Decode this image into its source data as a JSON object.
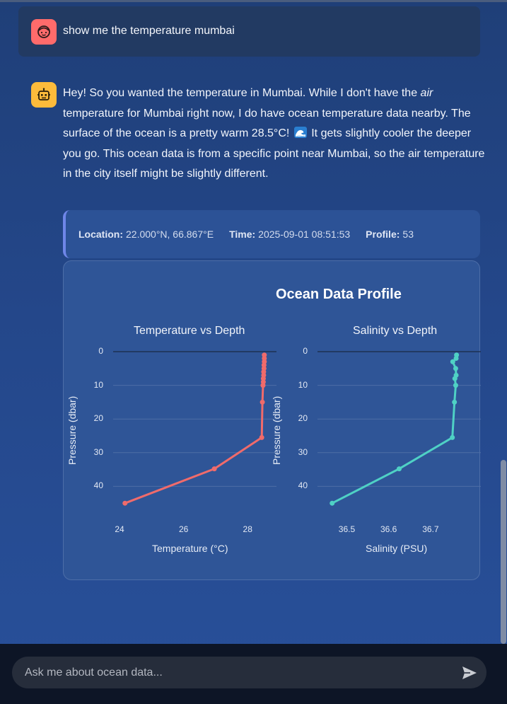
{
  "conversation": {
    "user_message": "show me the temperature mumbai",
    "bot_message": {
      "part1": "Hey! So you wanted the temperature in Mumbai. While I don't have the ",
      "emphasis": "air",
      "part2": " temperature for Mumbai right now, I do have ocean temperature data nearby. The surface of the ocean is a pretty warm 28.5°C!",
      "part3": " It gets slightly cooler the deeper you go. This ocean data is from a specific point near Mumbai, so the air temperature in the city itself might be slightly different."
    }
  },
  "metadata_box": {
    "location_label": "Location:",
    "location_value": "22.000°N, 66.867°E",
    "time_label": "Time:",
    "time_value": "2025-09-01 08:51:53",
    "profile_label": "Profile:",
    "profile_value": "53"
  },
  "icons": {
    "user_avatar": "user-face-icon",
    "bot_avatar": "robot-icon",
    "wave": "ocean-wave-icon",
    "send": "send-icon"
  },
  "colors": {
    "temperature_series": "#f06b6b",
    "salinity_series": "#4fd1c5",
    "user_avatar_bg": "#ff6b6b",
    "bot_avatar_bg": "#fdbb3b"
  },
  "input": {
    "placeholder": "Ask me about ocean data..."
  },
  "chart_data": {
    "title": "Ocean Data Profile",
    "charts": [
      {
        "type": "line",
        "title": "Temperature vs Depth",
        "xlabel": "Temperature (°C)",
        "ylabel": "Pressure (dbar)",
        "xlim": [
          23.8,
          28.9
        ],
        "ylim": [
          0,
          50
        ],
        "y_inverted": true,
        "xticks": [
          24,
          26,
          28
        ],
        "yticks": [
          0,
          10,
          20,
          30,
          40
        ],
        "grid": true,
        "points": [
          {
            "x": 28.52,
            "y": 1
          },
          {
            "x": 28.52,
            "y": 2
          },
          {
            "x": 28.52,
            "y": 3
          },
          {
            "x": 28.51,
            "y": 4
          },
          {
            "x": 28.51,
            "y": 5
          },
          {
            "x": 28.5,
            "y": 6
          },
          {
            "x": 28.5,
            "y": 7
          },
          {
            "x": 28.49,
            "y": 8
          },
          {
            "x": 28.49,
            "y": 9
          },
          {
            "x": 28.48,
            "y": 10
          },
          {
            "x": 28.46,
            "y": 15
          },
          {
            "x": 28.44,
            "y": 25.5
          },
          {
            "x": 26.96,
            "y": 34.8
          },
          {
            "x": 24.17,
            "y": 45
          }
        ]
      },
      {
        "type": "line",
        "title": "Salinity vs Depth",
        "xlabel": "Salinity (PSU)",
        "ylabel": "Pressure (dbar)",
        "xlim": [
          36.43,
          36.82
        ],
        "ylim": [
          0,
          50
        ],
        "y_inverted": true,
        "xticks": [
          36.5,
          36.6,
          36.7
        ],
        "yticks": [
          0,
          10,
          20,
          30,
          40
        ],
        "grid": true,
        "points": [
          {
            "x": 36.762,
            "y": 1
          },
          {
            "x": 36.761,
            "y": 2
          },
          {
            "x": 36.753,
            "y": 3
          },
          {
            "x": 36.76,
            "y": 5
          },
          {
            "x": 36.761,
            "y": 7
          },
          {
            "x": 36.758,
            "y": 8
          },
          {
            "x": 36.76,
            "y": 10
          },
          {
            "x": 36.757,
            "y": 15
          },
          {
            "x": 36.752,
            "y": 25.5
          },
          {
            "x": 36.625,
            "y": 34.8
          },
          {
            "x": 36.465,
            "y": 45
          }
        ]
      }
    ]
  }
}
